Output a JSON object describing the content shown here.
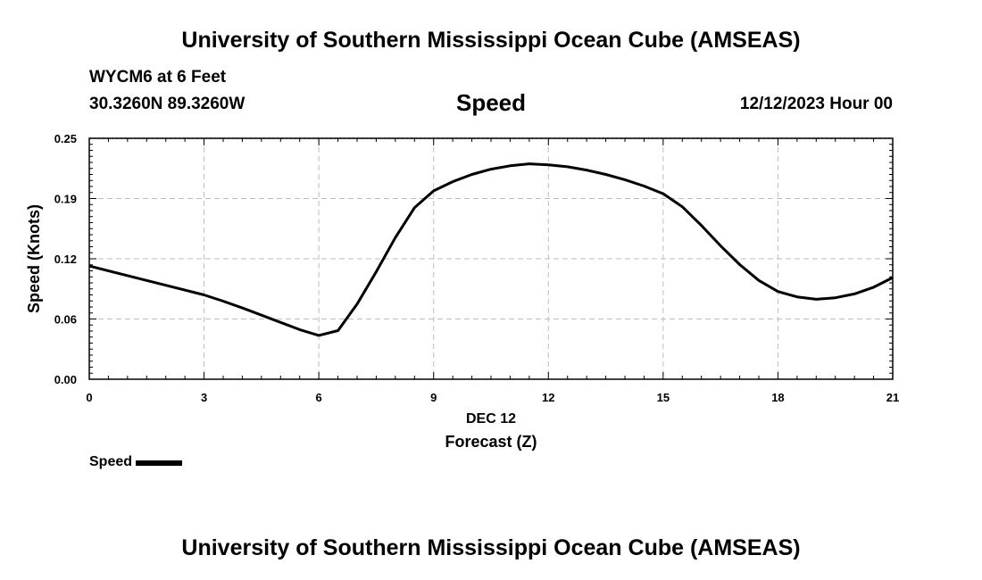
{
  "header": {
    "top_title": "University of Southern Mississippi Ocean Cube (AMSEAS)",
    "station": "WYCM6 at 6 Feet",
    "coordinates": "30.3260N  89.3260W",
    "date_stamp": "12/12/2023 Hour 00"
  },
  "footer": {
    "bottom_title": "University of Southern Mississippi Ocean Cube (AMSEAS)"
  },
  "legend": {
    "label": "Speed"
  },
  "chart_data": {
    "type": "line",
    "title": "Speed",
    "xlabel": "Forecast (Z)",
    "xsublabel": "DEC 12",
    "ylabel": "Speed (Knots)",
    "xlim": [
      0,
      21
    ],
    "ylim": [
      0,
      0.25
    ],
    "x_ticks": [
      0,
      3,
      6,
      9,
      12,
      15,
      18,
      21
    ],
    "x_tick_labels": [
      "0",
      "3",
      "6",
      "9",
      "12",
      "15",
      "18",
      "21"
    ],
    "y_ticks": [
      0.0,
      0.0625,
      0.125,
      0.1875,
      0.25
    ],
    "y_tick_labels": [
      "0.00",
      "0.06",
      "0.12",
      "0.19",
      "0.25"
    ],
    "grid": true,
    "series": [
      {
        "name": "Speed",
        "color": "#000000",
        "x": [
          0,
          1,
          2,
          3,
          3.5,
          4,
          4.5,
          5,
          5.5,
          6,
          6.5,
          7,
          7.5,
          8,
          8.5,
          9,
          9.5,
          10,
          10.5,
          11,
          11.5,
          12,
          12.5,
          13,
          13.5,
          14,
          14.5,
          15,
          15.5,
          16,
          16.5,
          17,
          17.5,
          18,
          18.5,
          19,
          19.5,
          20,
          20.5,
          21
        ],
        "y": [
          0.1175,
          0.1075,
          0.0975,
          0.0875,
          0.081,
          0.074,
          0.0665,
          0.059,
          0.0515,
          0.0455,
          0.0505,
          0.078,
          0.1115,
          0.147,
          0.178,
          0.1955,
          0.205,
          0.2125,
          0.218,
          0.2215,
          0.2235,
          0.2225,
          0.2205,
          0.217,
          0.2125,
          0.207,
          0.2005,
          0.1925,
          0.179,
          0.1595,
          0.1385,
          0.119,
          0.1025,
          0.091,
          0.0855,
          0.083,
          0.0845,
          0.0885,
          0.0955,
          0.1055
        ]
      }
    ]
  }
}
